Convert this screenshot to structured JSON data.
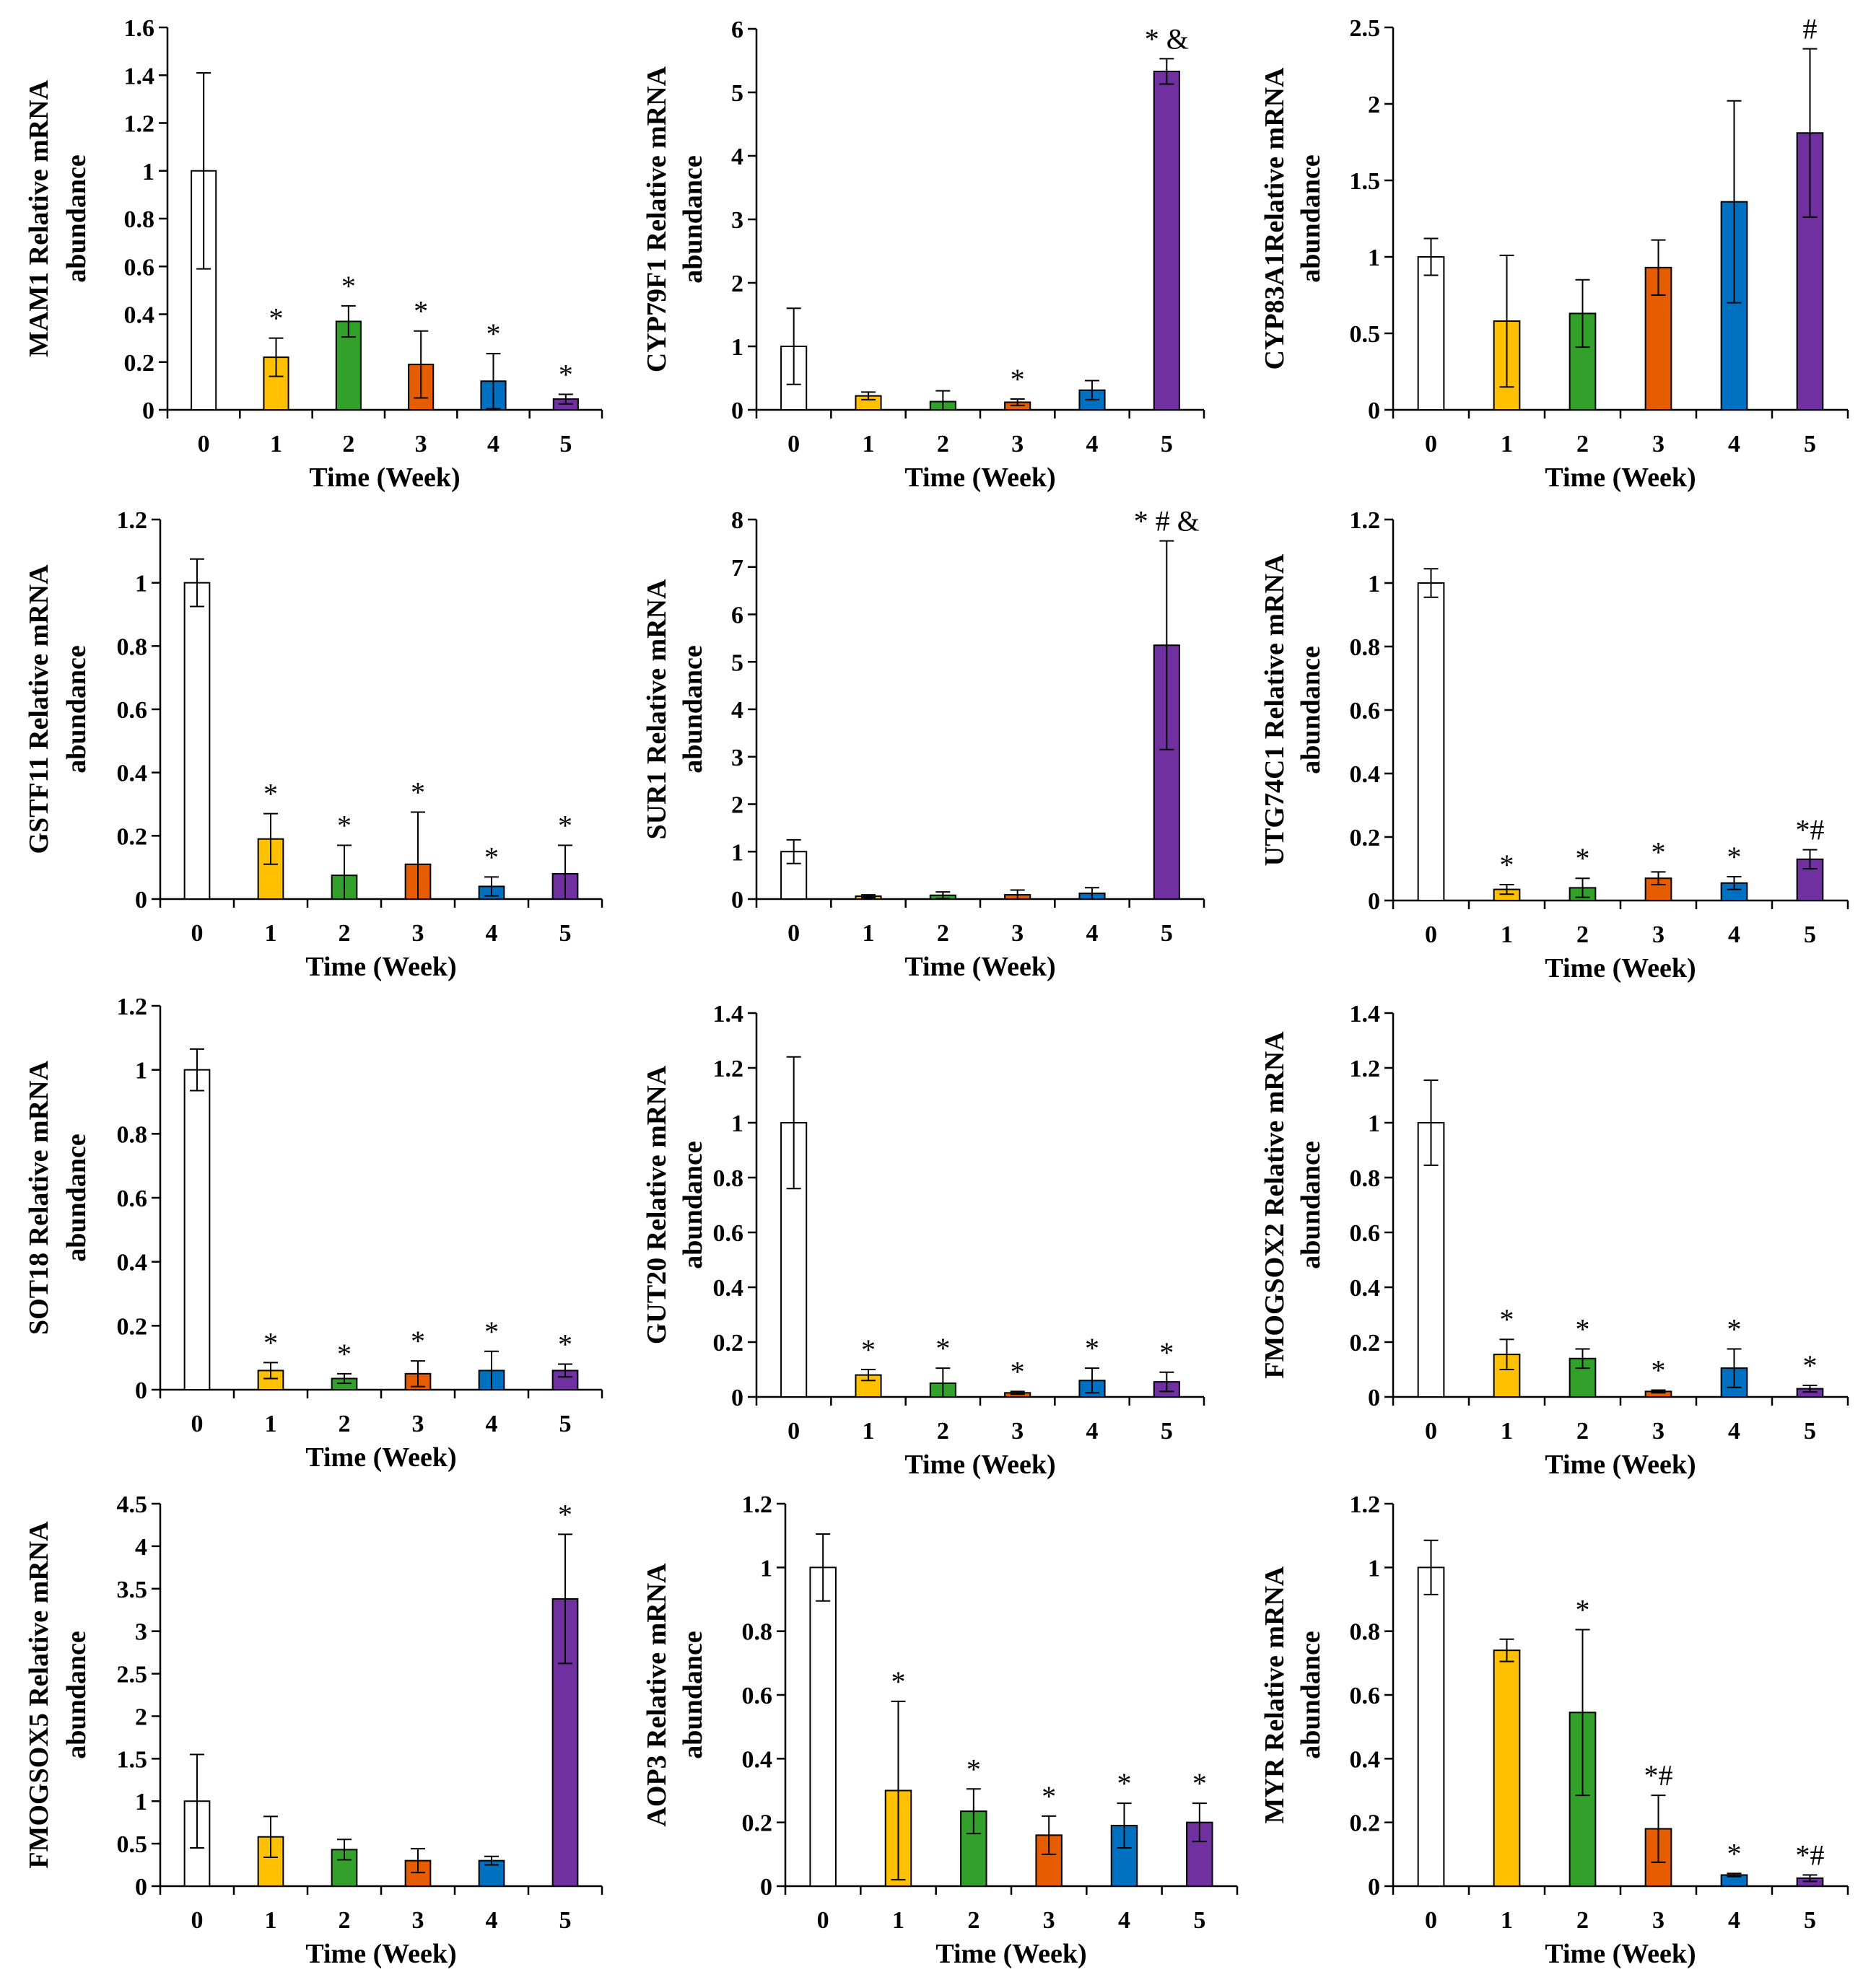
{
  "figure": {
    "xlabel": "Time (Week)",
    "categories": [
      "0",
      "1",
      "2",
      "3",
      "4",
      "5"
    ],
    "colors": [
      "#ffffff",
      "#ffc000",
      "#33a02c",
      "#e65c00",
      "#0070c0",
      "#7030a0"
    ]
  },
  "chart_data": [
    {
      "type": "bar",
      "title": "",
      "ylabel": [
        "MAM1 Relative mRNA",
        "abundance"
      ],
      "xlabel": "Time (Week)",
      "categories": [
        "0",
        "1",
        "2",
        "3",
        "4",
        "5"
      ],
      "values": [
        1.0,
        0.22,
        0.37,
        0.19,
        0.12,
        0.045
      ],
      "errors": [
        0.41,
        0.08,
        0.065,
        0.14,
        0.115,
        0.02
      ],
      "marks": [
        "",
        "*",
        "*",
        "*",
        "*",
        "*"
      ],
      "ylim": [
        0,
        1.6
      ],
      "yticks": [
        0,
        0.2,
        0.4,
        0.6,
        0.8,
        1,
        1.2,
        1.4,
        1.6
      ],
      "ytick_labels": [
        "0",
        "0.2",
        "0.4",
        "0.6",
        "0.8",
        "1",
        "1.2",
        "1.4",
        "1.6"
      ]
    },
    {
      "type": "bar",
      "title": "",
      "ylabel": [
        "CYP79F1 Relative mRNA",
        "abundance"
      ],
      "xlabel": "Time (Week)",
      "categories": [
        "0",
        "1",
        "2",
        "3",
        "4",
        "5"
      ],
      "values": [
        1.0,
        0.22,
        0.13,
        0.12,
        0.31,
        5.33
      ],
      "errors": [
        0.6,
        0.06,
        0.17,
        0.05,
        0.15,
        0.2
      ],
      "marks": [
        "",
        "",
        "",
        "*",
        "",
        "* &"
      ],
      "ylim": [
        0,
        6
      ],
      "yticks": [
        0,
        1,
        2,
        3,
        4,
        5,
        6
      ],
      "ytick_labels": [
        "0",
        "1",
        "2",
        "3",
        "4",
        "5",
        "6"
      ]
    },
    {
      "type": "bar",
      "title": "",
      "ylabel": [
        "CYP83A1Relative mRNA",
        "abundance"
      ],
      "xlabel": "Time (Week)",
      "categories": [
        "0",
        "1",
        "2",
        "3",
        "4",
        "5"
      ],
      "values": [
        1.0,
        0.58,
        0.63,
        0.93,
        1.36,
        1.81
      ],
      "errors": [
        0.12,
        0.43,
        0.22,
        0.18,
        0.66,
        0.55
      ],
      "marks": [
        "",
        "",
        "",
        "",
        "",
        "#"
      ],
      "ylim": [
        0,
        2.5
      ],
      "yticks": [
        0,
        0.5,
        1,
        1.5,
        2,
        2.5
      ],
      "ytick_labels": [
        "0",
        "0.5",
        "1",
        "1.5",
        "2",
        "2.5"
      ]
    },
    {
      "type": "bar",
      "title": "",
      "ylabel": [
        "GSTF11 Relative mRNA",
        "abundance"
      ],
      "xlabel": "Time (Week)",
      "categories": [
        "0",
        "1",
        "2",
        "3",
        "4",
        "5"
      ],
      "values": [
        1.0,
        0.19,
        0.075,
        0.11,
        0.04,
        0.08
      ],
      "errors": [
        0.075,
        0.08,
        0.095,
        0.165,
        0.03,
        0.09
      ],
      "marks": [
        "",
        "*",
        "*",
        "*",
        "*",
        "*"
      ],
      "ylim": [
        0,
        1.2
      ],
      "yticks": [
        0,
        0.2,
        0.4,
        0.6,
        0.8,
        1,
        1.2
      ],
      "ytick_labels": [
        "0",
        "0.2",
        "0.4",
        "0.6",
        "0.8",
        "1",
        "1.2"
      ]
    },
    {
      "type": "bar",
      "title": "",
      "ylabel": [
        "SUR1 Relative mRNA",
        "abundance"
      ],
      "xlabel": "Time (Week)",
      "categories": [
        "0",
        "1",
        "2",
        "3",
        "4",
        "5"
      ],
      "values": [
        1.0,
        0.06,
        0.08,
        0.09,
        0.12,
        5.35
      ],
      "errors": [
        0.25,
        0.03,
        0.07,
        0.1,
        0.12,
        2.2
      ],
      "marks": [
        "",
        "",
        "",
        "",
        "",
        "* # &"
      ],
      "ylim": [
        0,
        8
      ],
      "yticks": [
        0,
        1,
        2,
        3,
        4,
        5,
        6,
        7,
        8
      ],
      "ytick_labels": [
        "0",
        "1",
        "2",
        "3",
        "4",
        "5",
        "6",
        "7",
        "8"
      ]
    },
    {
      "type": "bar",
      "title": "",
      "ylabel": [
        "UTG74C1 Relative mRNA",
        "abundance"
      ],
      "xlabel": "Time (Week)",
      "categories": [
        "0",
        "1",
        "2",
        "3",
        "4",
        "5"
      ],
      "values": [
        1.0,
        0.035,
        0.04,
        0.07,
        0.055,
        0.13
      ],
      "errors": [
        0.045,
        0.015,
        0.03,
        0.02,
        0.02,
        0.03
      ],
      "marks": [
        "",
        "*",
        "*",
        "*",
        "*",
        "*#"
      ],
      "ylim": [
        0,
        1.2
      ],
      "yticks": [
        0,
        0.2,
        0.4,
        0.6,
        0.8,
        1,
        1.2
      ],
      "ytick_labels": [
        "0",
        "0.2",
        "0.4",
        "0.6",
        "0.8",
        "1",
        "1.2"
      ]
    },
    {
      "type": "bar",
      "title": "",
      "ylabel": [
        "SOT18 Relative mRNA",
        "abundance"
      ],
      "xlabel": "Time (Week)",
      "categories": [
        "0",
        "1",
        "2",
        "3",
        "4",
        "5"
      ],
      "values": [
        1.0,
        0.06,
        0.035,
        0.05,
        0.06,
        0.06
      ],
      "errors": [
        0.065,
        0.025,
        0.015,
        0.04,
        0.06,
        0.02
      ],
      "marks": [
        "",
        "*",
        "*",
        "*",
        "*",
        "*"
      ],
      "ylim": [
        0,
        1.2
      ],
      "yticks": [
        0,
        0.2,
        0.4,
        0.6,
        0.8,
        1,
        1.2
      ],
      "ytick_labels": [
        "0",
        "0.2",
        "0.4",
        "0.6",
        "0.8",
        "1",
        "1.2"
      ]
    },
    {
      "type": "bar",
      "title": "",
      "ylabel": [
        "GUT20 Relative mRNA",
        "abundance"
      ],
      "xlabel": "Time (Week)",
      "categories": [
        "0",
        "1",
        "2",
        "3",
        "4",
        "5"
      ],
      "values": [
        1.0,
        0.08,
        0.05,
        0.015,
        0.06,
        0.055
      ],
      "errors": [
        0.24,
        0.02,
        0.055,
        0.005,
        0.045,
        0.035
      ],
      "marks": [
        "",
        "*",
        "*",
        "*",
        "*",
        "*"
      ],
      "ylim": [
        0,
        1.4
      ],
      "yticks": [
        0,
        0.2,
        0.4,
        0.6,
        0.8,
        1,
        1.2,
        1.4
      ],
      "ytick_labels": [
        "0",
        "0.2",
        "0.4",
        "0.6",
        "0.8",
        "1",
        "1.2",
        "1.4"
      ]
    },
    {
      "type": "bar",
      "title": "",
      "ylabel": [
        "FMOGSOX2 Relative mRNA",
        "abundance"
      ],
      "xlabel": "Time (Week)",
      "categories": [
        "0",
        "1",
        "2",
        "3",
        "4",
        "5"
      ],
      "values": [
        1.0,
        0.155,
        0.14,
        0.02,
        0.105,
        0.03
      ],
      "errors": [
        0.155,
        0.055,
        0.035,
        0.005,
        0.07,
        0.012
      ],
      "marks": [
        "",
        "*",
        "*",
        "*",
        "*",
        "*"
      ],
      "ylim": [
        0,
        1.4
      ],
      "yticks": [
        0,
        0.2,
        0.4,
        0.6,
        0.8,
        1,
        1.2,
        1.4
      ],
      "ytick_labels": [
        "0",
        "0.2",
        "0.4",
        "0.6",
        "0.8",
        "1",
        "1.2",
        "1.4"
      ]
    },
    {
      "type": "bar",
      "title": "",
      "ylabel": [
        "FMOGSOX5 Relative mRNA",
        "abundance"
      ],
      "xlabel": "Time (Week)",
      "categories": [
        "0",
        "1",
        "2",
        "3",
        "4",
        "5"
      ],
      "values": [
        1.0,
        0.58,
        0.43,
        0.3,
        0.3,
        3.38
      ],
      "errors": [
        0.55,
        0.24,
        0.12,
        0.14,
        0.05,
        0.76
      ],
      "marks": [
        "",
        "",
        "",
        "",
        "",
        "*"
      ],
      "ylim": [
        0,
        4.5
      ],
      "yticks": [
        0,
        0.5,
        1,
        1.5,
        2,
        2.5,
        3,
        3.5,
        4,
        4.5
      ],
      "ytick_labels": [
        "0",
        "0.5",
        "1",
        "1.5",
        "2",
        "2.5",
        "3",
        "3.5",
        "4",
        "4.5"
      ]
    },
    {
      "type": "bar",
      "title": "",
      "ylabel": [
        "AOP3 Relative mRNA",
        "abundance"
      ],
      "xlabel": "Time (Week)",
      "categories": [
        "0",
        "1",
        "2",
        "3",
        "4",
        "5"
      ],
      "values": [
        1.0,
        0.3,
        0.235,
        0.16,
        0.19,
        0.2
      ],
      "errors": [
        0.105,
        0.28,
        0.07,
        0.06,
        0.07,
        0.06
      ],
      "marks": [
        "",
        "*",
        "*",
        "*",
        "*",
        "*"
      ],
      "ylim": [
        0,
        1.2
      ],
      "yticks": [
        0,
        0.2,
        0.4,
        0.6,
        0.8,
        1,
        1.2
      ],
      "ytick_labels": [
        "0",
        "0.2",
        "0.4",
        "0.6",
        "0.8",
        "1",
        "1.2"
      ]
    },
    {
      "type": "bar",
      "title": "",
      "ylabel": [
        "MYR Relative mRNA",
        "abundance"
      ],
      "xlabel": "Time (Week)",
      "categories": [
        "0",
        "1",
        "2",
        "3",
        "4",
        "5"
      ],
      "values": [
        1.0,
        0.74,
        0.545,
        0.18,
        0.035,
        0.025
      ],
      "errors": [
        0.085,
        0.035,
        0.26,
        0.105,
        0.005,
        0.01
      ],
      "marks": [
        "",
        "",
        "*",
        "*#",
        "*",
        "*#"
      ],
      "ylim": [
        0,
        1.2
      ],
      "yticks": [
        0,
        0.2,
        0.4,
        0.6,
        0.8,
        1,
        1.2
      ],
      "ytick_labels": [
        "0",
        "0.2",
        "0.4",
        "0.6",
        "0.8",
        "1",
        "1.2"
      ]
    }
  ]
}
